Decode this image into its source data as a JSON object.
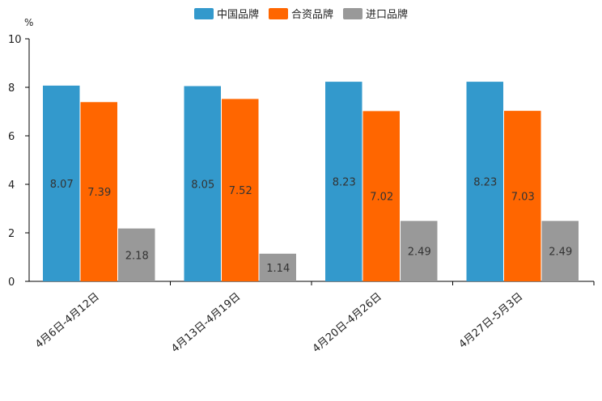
{
  "chart_data": {
    "type": "bar",
    "ylabel": "%",
    "ylim": [
      0,
      10
    ],
    "yticks": [
      0,
      2,
      4,
      6,
      8,
      10
    ],
    "categories": [
      "4月6日-4月12日",
      "4月13日-4月19日",
      "4月20日-4月26日",
      "4月27日-5月3日"
    ],
    "series": [
      {
        "name": "中国品牌",
        "color": "#3399cc",
        "values": [
          8.07,
          8.05,
          8.23,
          8.23
        ],
        "labels": [
          "8.07",
          "8.05",
          "8.23",
          "8.23"
        ]
      },
      {
        "name": "合资品牌",
        "color": "#ff6600",
        "values": [
          7.39,
          7.52,
          7.02,
          7.03
        ],
        "labels": [
          "7.39",
          "7.52",
          "7.02",
          "7.03"
        ]
      },
      {
        "name": "进口品牌",
        "color": "#999999",
        "values": [
          2.18,
          1.14,
          2.49,
          2.49
        ],
        "labels": [
          "2.18",
          "1.14",
          "2.49",
          "2.49"
        ]
      }
    ],
    "legend_position": "top-center"
  }
}
